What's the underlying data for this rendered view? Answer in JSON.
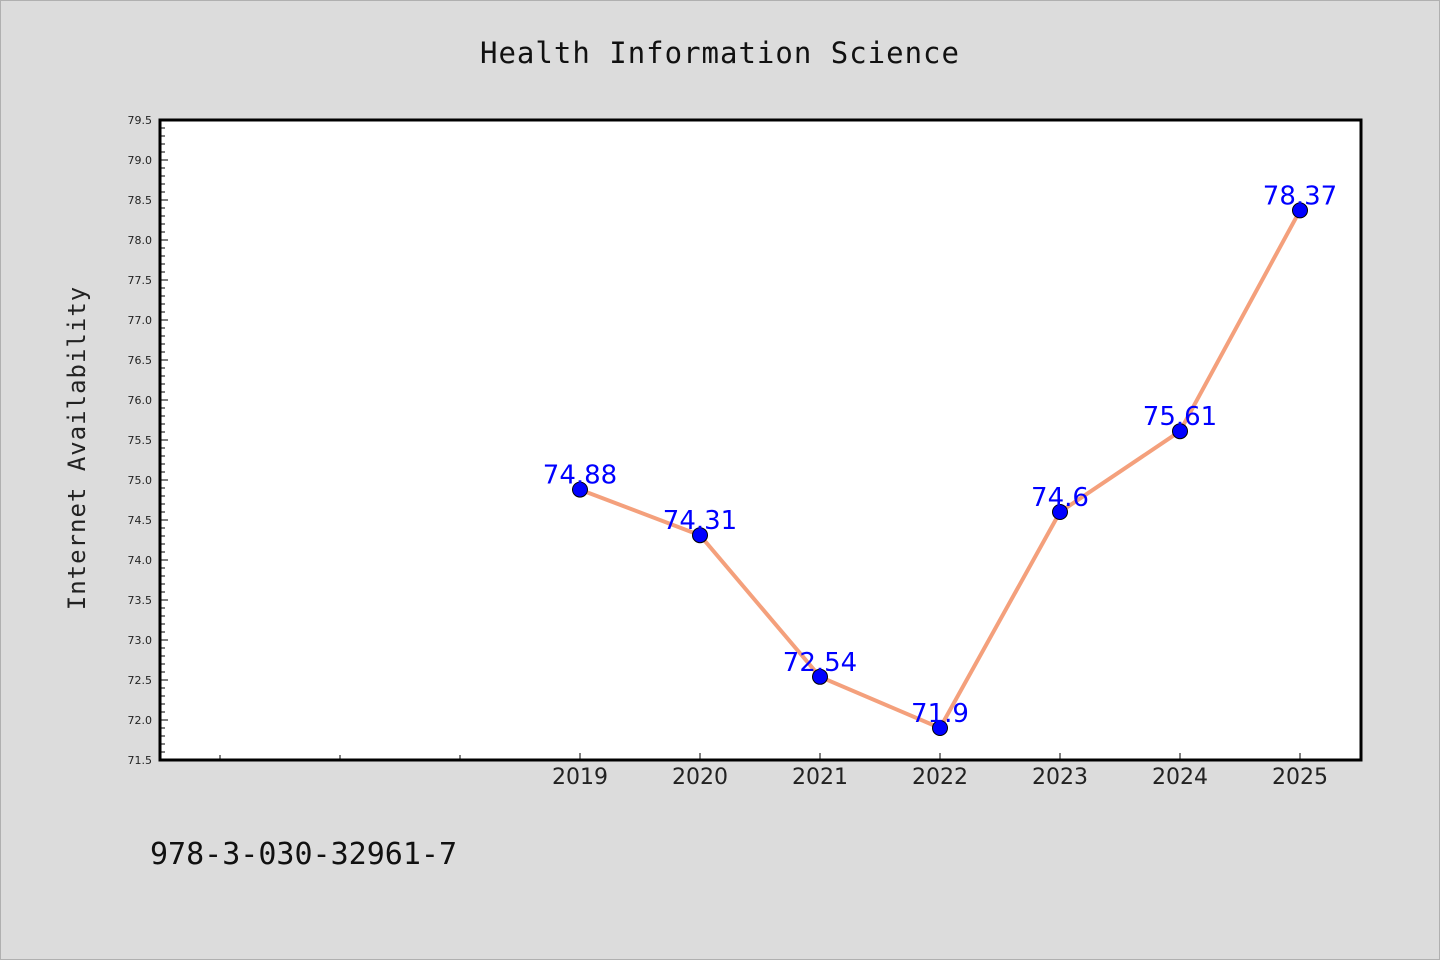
{
  "chart_data": {
    "type": "line",
    "title": "Health Information Science",
    "xlabel": "",
    "ylabel": "Internet Availability",
    "categories": [
      "2019",
      "2020",
      "2021",
      "2022",
      "2023",
      "2024",
      "2025"
    ],
    "series": [
      {
        "values": [
          74.88,
          74.31,
          72.54,
          71.9,
          74.6,
          75.61,
          78.37
        ]
      }
    ],
    "data_labels": [
      "74.88",
      "74.31",
      "72.54",
      "71.9",
      "74.6",
      "75.61",
      "78.37"
    ],
    "ylim": [
      71.5,
      79.5
    ],
    "y_ticks": [
      "71.5",
      "72.0",
      "72.5",
      "73.0",
      "73.5",
      "74.0",
      "74.5",
      "75.0",
      "75.5",
      "76.0",
      "76.5",
      "77.0",
      "77.5",
      "78.0",
      "78.5",
      "79.0",
      "79.5"
    ],
    "line_color": "#f4a07c",
    "marker_color": "#0000ff",
    "label_color": "#0000ff",
    "grid": false,
    "legend": "none"
  },
  "footer": {
    "isbn": "978-3-030-32961-7"
  }
}
